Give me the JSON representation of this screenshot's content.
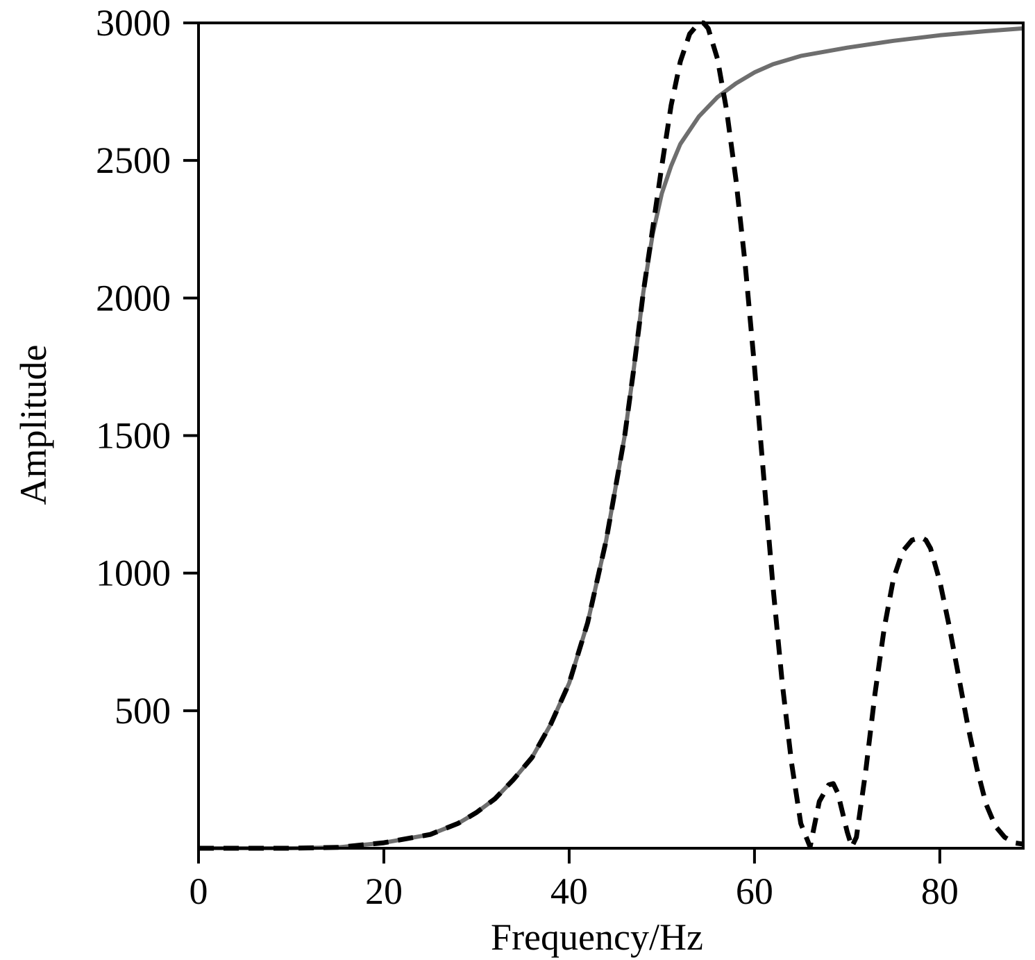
{
  "chart_data": {
    "type": "line",
    "title": "",
    "xlabel": "Frequency/Hz",
    "ylabel": "Amplitude",
    "xlim": [
      0,
      89
    ],
    "ylim": [
      0,
      3000
    ],
    "xticks": [
      0,
      20,
      40,
      60,
      80
    ],
    "yticks": [
      500,
      1000,
      1500,
      2000,
      2500,
      3000
    ],
    "grid": false,
    "legend": "none",
    "series": [
      {
        "style": "solid",
        "color": "#6e6e6e",
        "x": [
          0,
          10,
          15,
          20,
          25,
          28,
          30,
          32,
          34,
          36,
          38,
          40,
          42,
          44,
          46,
          47,
          48,
          49,
          50,
          51,
          52,
          54,
          56,
          58,
          60,
          62,
          65,
          70,
          75,
          80,
          85,
          89
        ],
        "y": [
          0,
          0,
          3,
          20,
          50,
          90,
          130,
          180,
          250,
          330,
          450,
          600,
          820,
          1120,
          1500,
          1750,
          2020,
          2230,
          2380,
          2480,
          2560,
          2660,
          2730,
          2780,
          2820,
          2850,
          2880,
          2910,
          2935,
          2955,
          2970,
          2980
        ]
      },
      {
        "style": "dashed",
        "color": "#000000",
        "x": [
          0,
          10,
          15,
          20,
          25,
          28,
          30,
          32,
          34,
          36,
          38,
          40,
          42,
          44,
          46,
          47,
          48,
          49,
          50,
          51,
          52,
          53,
          54,
          54.5,
          55,
          56,
          57,
          58,
          59,
          60,
          61,
          62,
          63,
          64,
          65,
          66,
          67,
          68,
          68.5,
          69,
          70,
          70.5,
          71,
          72,
          73,
          74,
          75,
          76,
          77,
          78,
          78.5,
          79,
          80,
          81,
          82,
          83,
          84,
          85,
          86,
          87,
          88,
          89
        ],
        "y": [
          0,
          0,
          3,
          20,
          50,
          90,
          130,
          180,
          250,
          330,
          450,
          600,
          820,
          1120,
          1500,
          1750,
          2020,
          2250,
          2480,
          2700,
          2860,
          2960,
          3000,
          3000,
          2980,
          2870,
          2680,
          2430,
          2120,
          1750,
          1350,
          950,
          600,
          310,
          90,
          5,
          170,
          230,
          235,
          200,
          60,
          5,
          40,
          280,
          560,
          800,
          980,
          1080,
          1120,
          1130,
          1120,
          1090,
          970,
          810,
          630,
          450,
          290,
          160,
          80,
          40,
          20,
          15
        ]
      }
    ]
  }
}
